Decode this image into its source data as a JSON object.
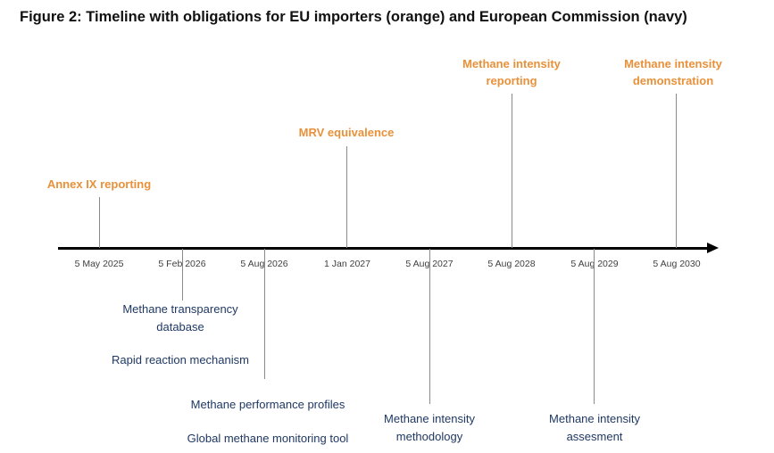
{
  "title": "Figure 2: Timeline with obligations for EU importers (orange) and European Commission (navy)",
  "colors": {
    "eu_importers": "#E8913A",
    "commission": "#1F3864",
    "axis": "#000000"
  },
  "dates": [
    "5 May 2025",
    "5 Feb 2026",
    "5 Aug 2026",
    "1 Jan 2027",
    "5 Aug 2027",
    "5 Aug 2028",
    "5 Aug 2029",
    "5 Aug 2030"
  ],
  "eu_importers": {
    "annex_ix": "Annex IX reporting",
    "mrv": "MRV equivalence",
    "intensity_reporting_1": "Methane intensity",
    "intensity_reporting_2": "reporting",
    "intensity_demo_1": "Methane intensity",
    "intensity_demo_2": "demonstration"
  },
  "commission": {
    "transparency_1": "Methane transparency",
    "transparency_2": "database",
    "rapid": "Rapid reaction mechanism",
    "profiles": "Methane performance profiles",
    "global_tool": "Global methane monitoring tool",
    "methodology_1": "Methane intensity",
    "methodology_2": "methodology",
    "assessment_1": "Methane intensity",
    "assessment_2": "assesment"
  }
}
